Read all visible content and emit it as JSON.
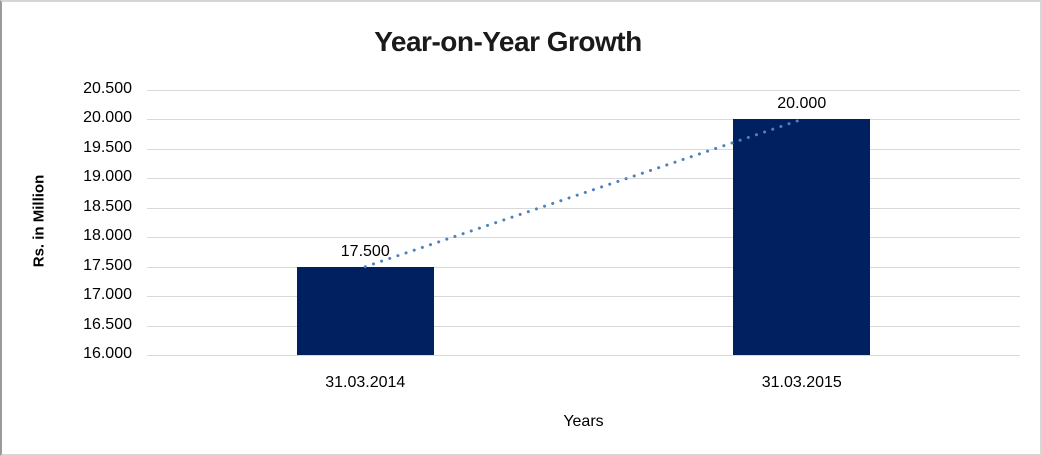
{
  "chart_data": {
    "type": "bar",
    "title": "Year-on-Year Growth",
    "xlabel": "Years",
    "ylabel": "Rs. in Million",
    "categories": [
      "31.03.2014",
      "31.03.2015"
    ],
    "values": [
      17500,
      20000
    ],
    "value_labels": [
      "17.500",
      "20.000"
    ],
    "ylim": [
      16000,
      20500
    ],
    "ytick_step": 500,
    "ytick_labels": [
      "16.000",
      "16.500",
      "17.000",
      "17.500",
      "18.000",
      "18.500",
      "19.000",
      "19.500",
      "20.000",
      "20.500"
    ],
    "grid": true,
    "legend_position": "none",
    "trendline": {
      "type": "linear",
      "style": "dotted"
    }
  },
  "colors": {
    "bar_fill": "#002060",
    "trendline": "#4f81bd",
    "gridline": "#d9d9d9",
    "axis_text": "#000000",
    "title_text": "#1a1a1a",
    "background": "#ffffff"
  }
}
